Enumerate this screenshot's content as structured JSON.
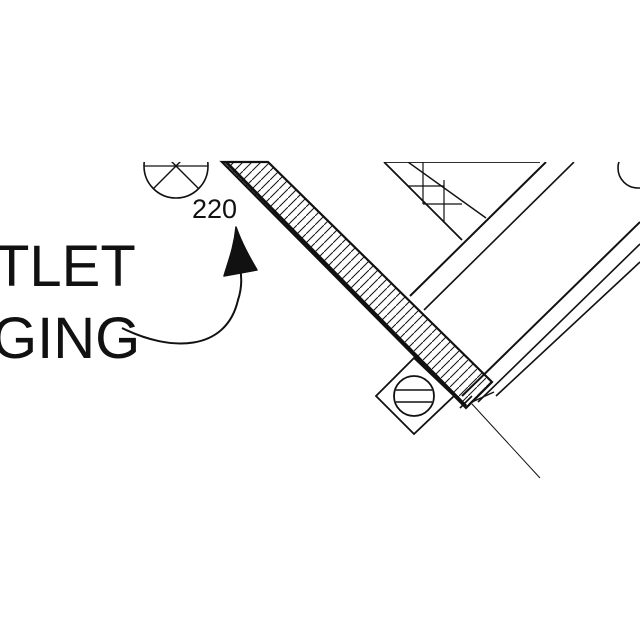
{
  "labels": {
    "line1": "TLET",
    "line2": "GING"
  },
  "reference_number": "220",
  "colors": {
    "ink": "#111111",
    "paper": "#ffffff"
  },
  "icons": {
    "pipe_symbol": "crossed-circle-icon",
    "fastener_symbol": "slotted-screw-icon",
    "pointer": "leader-arrow-icon"
  }
}
